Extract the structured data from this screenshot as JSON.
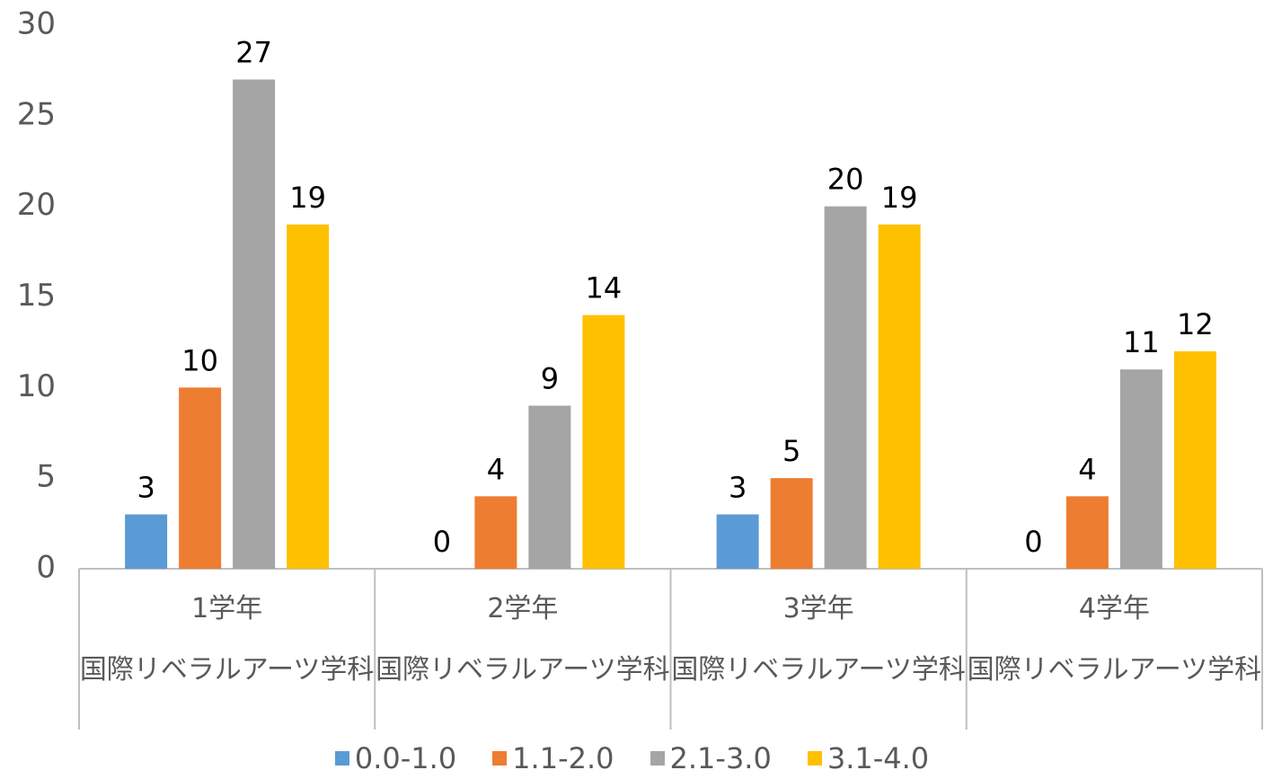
{
  "chart_data": {
    "type": "bar",
    "categories": [
      "1学年",
      "2学年",
      "3学年",
      "4学年"
    ],
    "subcategories": [
      "国際リベラルアーツ学科",
      "国際リベラルアーツ学科",
      "国際リベラルアーツ学科",
      "国際リベラルアーツ学科"
    ],
    "series": [
      {
        "name": "0.0-1.0",
        "color": "#5b9bd5",
        "values": [
          3,
          0,
          3,
          0
        ]
      },
      {
        "name": "1.1-2.0",
        "color": "#ed7d31",
        "values": [
          10,
          4,
          5,
          4
        ]
      },
      {
        "name": "2.1-3.0",
        "color": "#a5a5a5",
        "values": [
          27,
          9,
          20,
          11
        ]
      },
      {
        "name": "3.1-4.0",
        "color": "#ffc000",
        "values": [
          19,
          14,
          19,
          12
        ]
      }
    ],
    "ylim": [
      0,
      30
    ],
    "yticks": [
      0,
      5,
      10,
      15,
      20,
      25,
      30
    ],
    "grid": false,
    "legend": "bottom"
  }
}
